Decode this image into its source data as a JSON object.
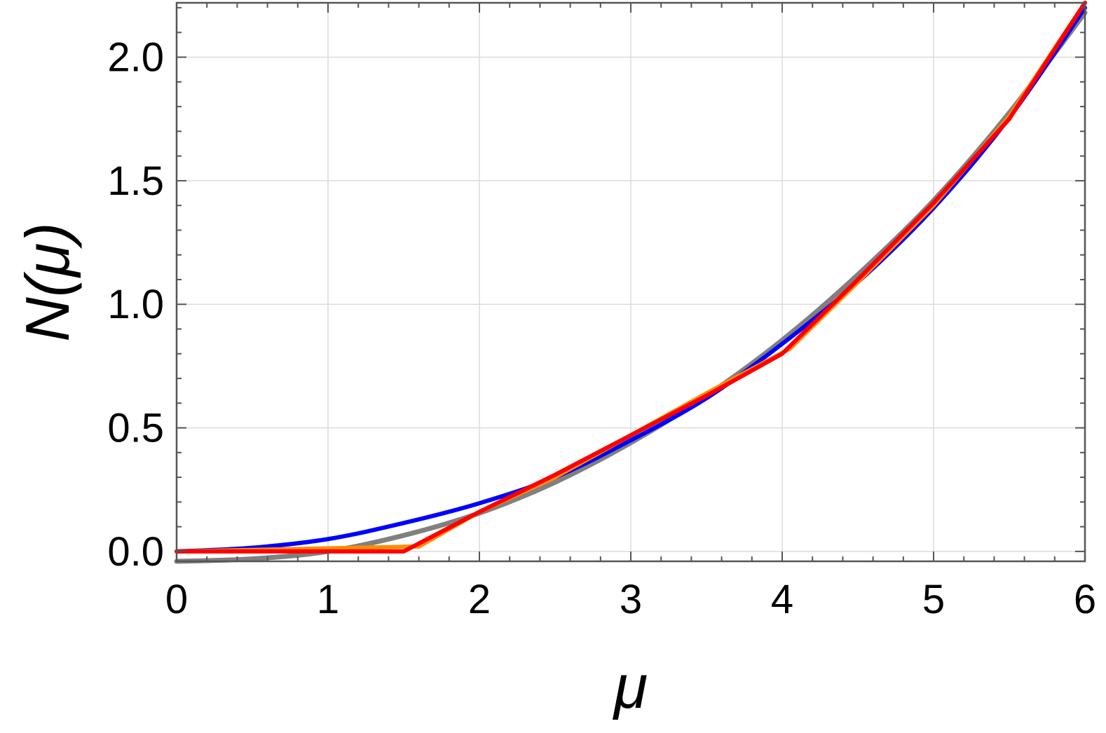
{
  "chart_data": {
    "type": "line",
    "xlabel": "μ",
    "ylabel": "N(μ)",
    "xlim": [
      0,
      6
    ],
    "ylim": [
      -0.04,
      2.22
    ],
    "grid": true,
    "x_ticks": [
      "0",
      "1",
      "2",
      "3",
      "4",
      "5",
      "6"
    ],
    "y_ticks": [
      "0.0",
      "0.5",
      "1.0",
      "1.5",
      "2.0"
    ],
    "series": [
      {
        "color": "#808080",
        "x": [
          0,
          0.5,
          1,
          1.5,
          2,
          2.5,
          3,
          3.5,
          4,
          4.5,
          5,
          5.5,
          6
        ],
        "y": [
          -0.04,
          -0.03,
          0.0,
          0.065,
          0.155,
          0.28,
          0.44,
          0.63,
          0.855,
          1.12,
          1.42,
          1.775,
          2.18
        ]
      },
      {
        "color": "#0000ff",
        "x": [
          0,
          0.5,
          1,
          1.5,
          2,
          2.5,
          3,
          3.5,
          4,
          4.5,
          5,
          5.5,
          6
        ],
        "y": [
          0.0,
          0.015,
          0.05,
          0.115,
          0.195,
          0.3,
          0.45,
          0.62,
          0.84,
          1.09,
          1.39,
          1.755,
          2.2
        ]
      },
      {
        "color": "#ff8c00",
        "x": [
          0,
          1.6,
          2,
          2.5,
          3,
          3.5,
          4.05,
          4.5,
          5,
          5.5,
          6
        ],
        "y": [
          0.0,
          0.02,
          0.16,
          0.3,
          0.47,
          0.64,
          0.82,
          1.09,
          1.4,
          1.76,
          2.22
        ]
      },
      {
        "color": "#ff0000",
        "x": [
          0,
          1.5,
          2,
          2.5,
          3,
          3.5,
          4,
          4.5,
          5,
          5.5,
          6
        ],
        "y": [
          0.0,
          0.0,
          0.16,
          0.31,
          0.47,
          0.63,
          0.8,
          1.1,
          1.41,
          1.75,
          2.22
        ]
      }
    ]
  }
}
